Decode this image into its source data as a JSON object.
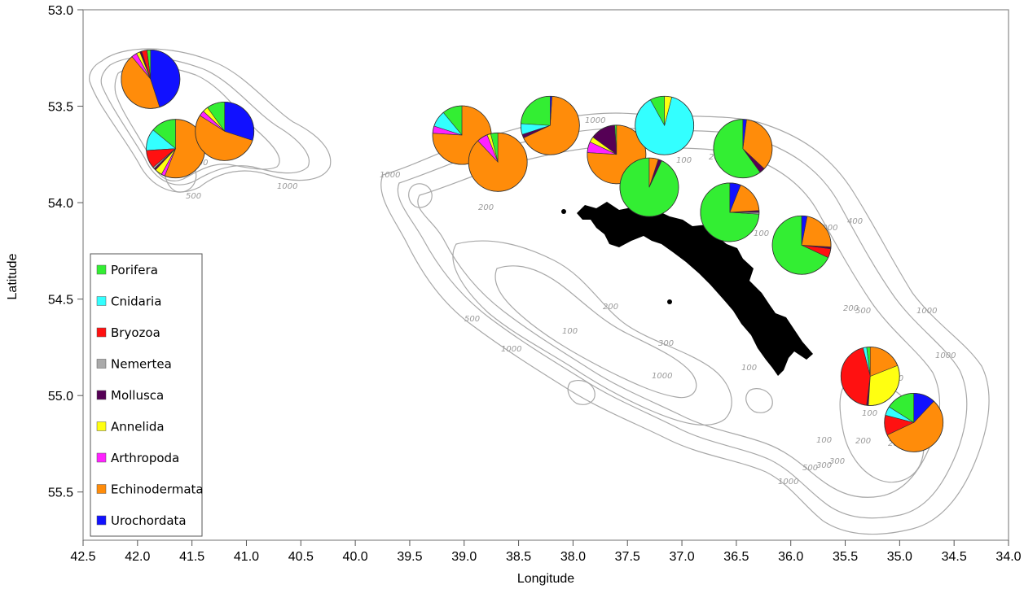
{
  "axes": {
    "xlabel": "Longitude",
    "ylabel": "Latitude",
    "x_ticks": [
      "42.5",
      "42.0",
      "41.5",
      "41.0",
      "40.5",
      "40.0",
      "39.5",
      "39.0",
      "38.5",
      "38.0",
      "37.5",
      "37.0",
      "36.5",
      "36.0",
      "35.5",
      "35.0",
      "34.5",
      "34.0"
    ],
    "y_ticks": [
      "53.0",
      "53.5",
      "54.0",
      "54.5",
      "55.0",
      "55.5"
    ]
  },
  "contour_labels": [
    "1000",
    "1000",
    "500",
    "1000",
    "200",
    "1000",
    "200",
    "200",
    "100",
    "200",
    "100",
    "500",
    "1000",
    "1000",
    "500",
    "200",
    "400",
    "100",
    "300",
    "100",
    "1000",
    "1000",
    "300",
    "200",
    "100",
    "500",
    "100",
    "200",
    "300",
    "500",
    "1000",
    "1000"
  ],
  "chart_data": {
    "type": "pie",
    "map_extent": {
      "lon": [
        42.5,
        34.0
      ],
      "lat": [
        53.0,
        55.75
      ],
      "lon_reversed": true,
      "lat_reversed": true
    },
    "taxa": [
      "Porifera",
      "Cnidaria",
      "Bryozoa",
      "Nemertea",
      "Mollusca",
      "Annelida",
      "Arthropoda",
      "Echinodermata",
      "Urochordata"
    ],
    "colors": [
      "#33ee33",
      "#33ffff",
      "#ff1111",
      "#aaaaaa",
      "#550055",
      "#ffff11",
      "#ff22ff",
      "#ff8c0a",
      "#1111ff"
    ],
    "legend_position": "bottom-left",
    "pies": [
      {
        "lon": 41.88,
        "lat": 53.36,
        "values": [
          2,
          0,
          3,
          0,
          1,
          2,
          3,
          44,
          45
        ]
      },
      {
        "lon": 41.65,
        "lat": 53.72,
        "values": [
          14,
          12,
          10,
          1,
          1,
          4,
          2,
          56,
          0
        ]
      },
      {
        "lon": 41.2,
        "lat": 53.63,
        "values": [
          10,
          0,
          0,
          0,
          0,
          3,
          3,
          54,
          30
        ]
      },
      {
        "lon": 39.02,
        "lat": 53.65,
        "values": [
          11,
          9,
          0,
          0,
          0,
          0,
          4,
          76,
          0
        ]
      },
      {
        "lon": 38.69,
        "lat": 53.79,
        "values": [
          4,
          0,
          0,
          0,
          0,
          2,
          6,
          88,
          0
        ]
      },
      {
        "lon": 38.21,
        "lat": 53.6,
        "values": [
          24,
          6,
          0,
          0,
          2,
          0,
          0,
          67,
          1
        ]
      },
      {
        "lon": 37.6,
        "lat": 53.75,
        "values": [
          1,
          0,
          0,
          0,
          14,
          3,
          6,
          76,
          0
        ]
      },
      {
        "lon": 37.16,
        "lat": 53.6,
        "values": [
          8,
          88,
          0,
          0,
          0,
          4,
          0,
          0,
          0
        ]
      },
      {
        "lon": 37.3,
        "lat": 53.92,
        "values": [
          93,
          0,
          0,
          0,
          2,
          0,
          0,
          5,
          0
        ]
      },
      {
        "lon": 36.44,
        "lat": 53.72,
        "values": [
          60,
          0,
          0,
          0,
          3,
          0,
          0,
          35,
          2
        ]
      },
      {
        "lon": 36.56,
        "lat": 54.05,
        "values": [
          74,
          0,
          0,
          1,
          1,
          0,
          0,
          18,
          6
        ]
      },
      {
        "lon": 35.9,
        "lat": 54.22,
        "values": [
          68,
          0,
          5,
          0,
          1,
          0,
          0,
          23,
          3
        ]
      },
      {
        "lon": 35.27,
        "lat": 54.9,
        "values": [
          2,
          2,
          44,
          0,
          1,
          32,
          0,
          19,
          0
        ]
      },
      {
        "lon": 34.87,
        "lat": 55.14,
        "values": [
          16,
          5,
          11,
          0,
          0,
          0,
          0,
          56,
          12
        ]
      }
    ]
  }
}
